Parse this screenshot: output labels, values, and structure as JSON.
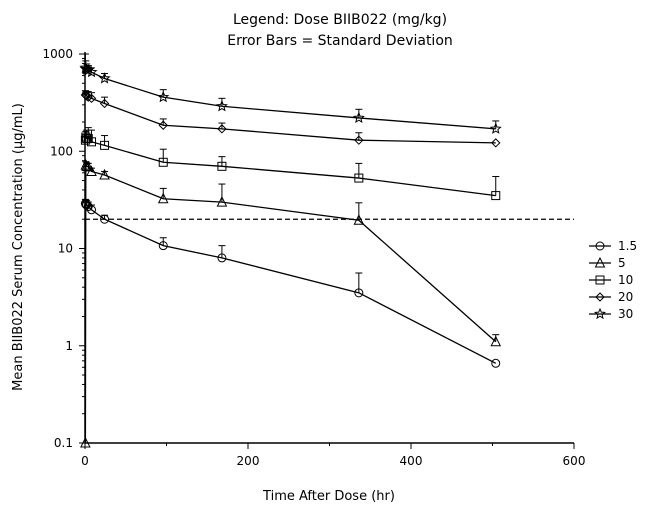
{
  "chart_data": {
    "type": "line",
    "title_lines": [
      "Legend:  Dose BIIB022 (mg/kg)",
      "Error Bars =  Standard Deviation"
    ],
    "xlabel": "Time After Dose (hr)",
    "ylabel": "Mean BIIB022 Serum Concentration (µg/mL)",
    "xlim": [
      0,
      600
    ],
    "ylim": [
      0.1,
      1000
    ],
    "yscale": "log",
    "grid": false,
    "legend_position": "right",
    "xticks": [
      0,
      200,
      400,
      600
    ],
    "xtick_labels": [
      "0",
      "200",
      "400",
      "600"
    ],
    "yticks": [
      0.1,
      1,
      10,
      100,
      1000
    ],
    "ytick_labels": [
      "0.1",
      "1",
      "10",
      "100",
      "1000"
    ],
    "reference_line": {
      "y": 20,
      "style": "dashed"
    },
    "series": [
      {
        "name": "1.5",
        "marker": "circle",
        "x": [
          0.5,
          1,
          2,
          4,
          8,
          24,
          96,
          168,
          336,
          504
        ],
        "y": [
          29,
          28.5,
          28,
          27,
          25,
          20,
          10.7,
          8,
          3.5,
          0.66
        ],
        "err": [
          3,
          3,
          3,
          3,
          3,
          2,
          2.2,
          2.7,
          2.1,
          0
        ]
      },
      {
        "name": "5",
        "marker": "triangle",
        "x": [
          0.5,
          1,
          2,
          4,
          8,
          24,
          96,
          168,
          336,
          504
        ],
        "y": [
          0.1,
          72,
          70,
          69,
          62,
          57,
          32.5,
          30,
          19.5,
          1.1
        ],
        "err": [
          0,
          6,
          6,
          6,
          5,
          5,
          9,
          16,
          10,
          0.2
        ]
      },
      {
        "name": "10",
        "marker": "square",
        "x": [
          0.5,
          1,
          2,
          4,
          8,
          24,
          96,
          168,
          336,
          504
        ],
        "y": [
          130,
          140,
          135,
          135,
          125,
          115,
          77,
          70,
          53,
          35
        ],
        "err": [
          10,
          20,
          30,
          40,
          40,
          30,
          28,
          18,
          22,
          20
        ]
      },
      {
        "name": "20",
        "marker": "diamond",
        "x": [
          0.5,
          1,
          2,
          4,
          8,
          24,
          96,
          168,
          336,
          504
        ],
        "y": [
          380,
          375,
          370,
          360,
          350,
          310,
          185,
          170,
          130,
          122
        ],
        "err": [
          40,
          40,
          40,
          50,
          50,
          50,
          30,
          25,
          25,
          0
        ]
      },
      {
        "name": "30",
        "marker": "star",
        "x": [
          0.5,
          1,
          2,
          4,
          8,
          24,
          96,
          168,
          336,
          504
        ],
        "y": [
          720,
          700,
          690,
          680,
          650,
          560,
          360,
          290,
          220,
          170
        ],
        "err": [
          280,
          150,
          100,
          80,
          70,
          70,
          70,
          60,
          50,
          35
        ]
      }
    ]
  }
}
